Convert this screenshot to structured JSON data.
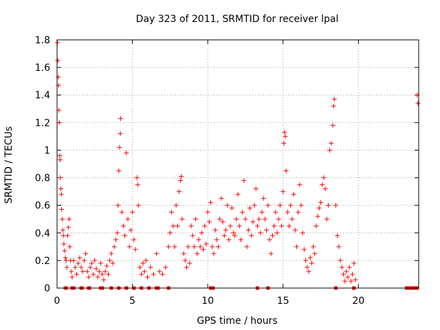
{
  "chart_data": {
    "type": "scatter",
    "title": "Day 323 of 2011, SRMTID for receiver lpal",
    "xlabel": "GPS time / hours",
    "ylabel": "SRMTID / TECUs",
    "xlim": [
      0,
      24
    ],
    "ylim": [
      0,
      1.8
    ],
    "xticks": [
      0,
      5,
      10,
      15,
      20
    ],
    "xtick_labels": [
      "0",
      "5",
      "10",
      "15",
      "20"
    ],
    "yticks": [
      0,
      0.2,
      0.4,
      0.6,
      0.8,
      1,
      1.2,
      1.4,
      1.6,
      1.8
    ],
    "ytick_labels": [
      "0",
      "0.2",
      "0.4",
      "0.6",
      "0.8",
      "1",
      "1.2",
      "1.4",
      "1.6",
      "1.8"
    ],
    "grid": true,
    "marker": "plus",
    "colors": {
      "series": "#ff0000",
      "grid": "#a0a0a0",
      "axis": "#000000"
    },
    "series": [
      {
        "name": "SRMTID",
        "points": [
          [
            0.02,
            1.78
          ],
          [
            0.05,
            1.65
          ],
          [
            0.08,
            1.53
          ],
          [
            0.1,
            1.47
          ],
          [
            0.12,
            1.29
          ],
          [
            0.15,
            1.2
          ],
          [
            0.18,
            0.96
          ],
          [
            0.2,
            0.93
          ],
          [
            0.22,
            0.8
          ],
          [
            0.25,
            0.72
          ],
          [
            0.28,
            0.68
          ],
          [
            0.3,
            0.57
          ],
          [
            0.35,
            0.5
          ],
          [
            0.38,
            0.42
          ],
          [
            0.42,
            0.38
          ],
          [
            0.45,
            0.32
          ],
          [
            0.5,
            0.27
          ],
          [
            0.55,
            0.22
          ],
          [
            0.6,
            0.2
          ],
          [
            0.65,
            0.15
          ],
          [
            0.7,
            0.38
          ],
          [
            0.75,
            0.44
          ],
          [
            0.8,
            0.5
          ],
          [
            0.85,
            0.3
          ],
          [
            0.9,
            0.2
          ],
          [
            0.95,
            0.12
          ],
          [
            1.0,
            0.08
          ],
          [
            1.1,
            0.2
          ],
          [
            1.2,
            0.15
          ],
          [
            1.3,
            0.1
          ],
          [
            1.4,
            0.18
          ],
          [
            1.5,
            0.22
          ],
          [
            1.6,
            0.15
          ],
          [
            1.7,
            0.12
          ],
          [
            1.8,
            0.2
          ],
          [
            1.9,
            0.25
          ],
          [
            2.0,
            0.12
          ],
          [
            2.1,
            0.08
          ],
          [
            2.2,
            0.15
          ],
          [
            2.3,
            0.18
          ],
          [
            2.4,
            0.1
          ],
          [
            2.5,
            0.2
          ],
          [
            2.6,
            0.14
          ],
          [
            2.7,
            0.08
          ],
          [
            2.8,
            0.12
          ],
          [
            2.9,
            0.18
          ],
          [
            3.0,
            0.1
          ],
          [
            3.1,
            0.06
          ],
          [
            3.2,
            0.12
          ],
          [
            3.3,
            0.16
          ],
          [
            3.4,
            0.1
          ],
          [
            3.5,
            0.2
          ],
          [
            3.6,
            0.25
          ],
          [
            3.7,
            0.18
          ],
          [
            3.8,
            0.3
          ],
          [
            3.9,
            0.35
          ],
          [
            4.0,
            0.4
          ],
          [
            4.05,
            0.6
          ],
          [
            4.1,
            0.85
          ],
          [
            4.15,
            1.02
          ],
          [
            4.2,
            1.12
          ],
          [
            4.22,
            1.23
          ],
          [
            4.3,
            0.55
          ],
          [
            4.4,
            0.45
          ],
          [
            4.5,
            0.38
          ],
          [
            4.6,
            0.98
          ],
          [
            4.7,
            0.5
          ],
          [
            4.8,
            0.3
          ],
          [
            4.9,
            0.42
          ],
          [
            5.0,
            0.55
          ],
          [
            5.1,
            0.35
          ],
          [
            5.2,
            0.28
          ],
          [
            5.3,
            0.8
          ],
          [
            5.35,
            0.75
          ],
          [
            5.4,
            0.6
          ],
          [
            5.5,
            0.15
          ],
          [
            5.6,
            0.1
          ],
          [
            5.7,
            0.18
          ],
          [
            5.8,
            0.12
          ],
          [
            5.9,
            0.2
          ],
          [
            6.0,
            0.08
          ],
          [
            6.2,
            0.15
          ],
          [
            6.4,
            0.1
          ],
          [
            6.6,
            0.25
          ],
          [
            6.8,
            0.12
          ],
          [
            7.0,
            0.1
          ],
          [
            7.2,
            0.15
          ],
          [
            7.4,
            0.3
          ],
          [
            7.5,
            0.4
          ],
          [
            7.6,
            0.55
          ],
          [
            7.7,
            0.45
          ],
          [
            7.8,
            0.3
          ],
          [
            7.9,
            0.6
          ],
          [
            8.0,
            0.45
          ],
          [
            8.1,
            0.7
          ],
          [
            8.2,
            0.78
          ],
          [
            8.25,
            0.81
          ],
          [
            8.3,
            0.5
          ],
          [
            8.4,
            0.25
          ],
          [
            8.5,
            0.2
          ],
          [
            8.6,
            0.15
          ],
          [
            8.7,
            0.3
          ],
          [
            8.8,
            0.18
          ],
          [
            8.9,
            0.45
          ],
          [
            9.0,
            0.38
          ],
          [
            9.1,
            0.3
          ],
          [
            9.2,
            0.5
          ],
          [
            9.3,
            0.25
          ],
          [
            9.4,
            0.35
          ],
          [
            9.5,
            0.3
          ],
          [
            9.6,
            0.4
          ],
          [
            9.7,
            0.28
          ],
          [
            9.8,
            0.45
          ],
          [
            9.9,
            0.32
          ],
          [
            10.0,
            0.55
          ],
          [
            10.1,
            0.48
          ],
          [
            10.2,
            0.62
          ],
          [
            10.3,
            0.3
          ],
          [
            10.4,
            0.25
          ],
          [
            10.5,
            0.42
          ],
          [
            10.6,
            0.35
          ],
          [
            10.7,
            0.3
          ],
          [
            10.8,
            0.5
          ],
          [
            10.9,
            0.65
          ],
          [
            11.0,
            0.48
          ],
          [
            11.1,
            0.38
          ],
          [
            11.2,
            0.42
          ],
          [
            11.3,
            0.6
          ],
          [
            11.4,
            0.35
          ],
          [
            11.5,
            0.45
          ],
          [
            11.6,
            0.58
          ],
          [
            11.7,
            0.4
          ],
          [
            11.8,
            0.38
          ],
          [
            11.9,
            0.5
          ],
          [
            12.0,
            0.68
          ],
          [
            12.1,
            0.45
          ],
          [
            12.2,
            0.35
          ],
          [
            12.3,
            0.55
          ],
          [
            12.4,
            0.78
          ],
          [
            12.5,
            0.5
          ],
          [
            12.6,
            0.3
          ],
          [
            12.7,
            0.42
          ],
          [
            12.8,
            0.58
          ],
          [
            12.9,
            0.38
          ],
          [
            13.0,
            0.48
          ],
          [
            13.1,
            0.6
          ],
          [
            13.2,
            0.72
          ],
          [
            13.3,
            0.45
          ],
          [
            13.4,
            0.5
          ],
          [
            13.5,
            0.4
          ],
          [
            13.6,
            0.55
          ],
          [
            13.7,
            0.65
          ],
          [
            13.8,
            0.5
          ],
          [
            13.9,
            0.42
          ],
          [
            14.0,
            0.6
          ],
          [
            14.1,
            0.35
          ],
          [
            14.2,
            0.25
          ],
          [
            14.3,
            0.38
          ],
          [
            14.4,
            0.45
          ],
          [
            14.5,
            0.55
          ],
          [
            14.6,
            0.4
          ],
          [
            14.7,
            0.5
          ],
          [
            14.8,
            0.6
          ],
          [
            14.9,
            0.45
          ],
          [
            15.0,
            0.7
          ],
          [
            15.05,
            1.05
          ],
          [
            15.1,
            1.13
          ],
          [
            15.15,
            1.1
          ],
          [
            15.2,
            0.85
          ],
          [
            15.3,
            0.55
          ],
          [
            15.4,
            0.45
          ],
          [
            15.5,
            0.6
          ],
          [
            15.6,
            0.5
          ],
          [
            15.7,
            0.68
          ],
          [
            15.8,
            0.42
          ],
          [
            15.9,
            0.3
          ],
          [
            16.0,
            0.55
          ],
          [
            16.1,
            0.75
          ],
          [
            16.2,
            0.6
          ],
          [
            16.3,
            0.4
          ],
          [
            16.4,
            0.28
          ],
          [
            16.5,
            0.2
          ],
          [
            16.6,
            0.15
          ],
          [
            16.7,
            0.12
          ],
          [
            16.8,
            0.22
          ],
          [
            16.9,
            0.18
          ],
          [
            17.0,
            0.3
          ],
          [
            17.1,
            0.25
          ],
          [
            17.2,
            0.45
          ],
          [
            17.3,
            0.52
          ],
          [
            17.4,
            0.58
          ],
          [
            17.5,
            0.62
          ],
          [
            17.6,
            0.75
          ],
          [
            17.7,
            0.8
          ],
          [
            17.8,
            0.72
          ],
          [
            17.9,
            0.5
          ],
          [
            18.0,
            0.6
          ],
          [
            18.1,
            1.0
          ],
          [
            18.2,
            1.05
          ],
          [
            18.3,
            1.18
          ],
          [
            18.35,
            1.32
          ],
          [
            18.4,
            1.37
          ],
          [
            18.5,
            0.6
          ],
          [
            18.6,
            0.38
          ],
          [
            18.7,
            0.3
          ],
          [
            18.8,
            0.2
          ],
          [
            18.9,
            0.15
          ],
          [
            19.0,
            0.1
          ],
          [
            19.1,
            0.05
          ],
          [
            19.2,
            0.12
          ],
          [
            19.3,
            0.08
          ],
          [
            19.4,
            0.15
          ],
          [
            19.5,
            0.05
          ],
          [
            19.6,
            0.1
          ],
          [
            19.7,
            0.18
          ],
          [
            19.8,
            0.06
          ],
          [
            23.9,
            1.4
          ],
          [
            23.95,
            1.34
          ]
        ],
        "zero_points": [
          0.55,
          0.6,
          1.0,
          1.1,
          1.6,
          1.65,
          2.1,
          2.15,
          2.9,
          3.0,
          3.6,
          4.1,
          4.6,
          5.1,
          5.6,
          6.1,
          6.6,
          6.7,
          7.4,
          10.2,
          10.25,
          10.3,
          10.35,
          13.3,
          14.0,
          18.5,
          19.7,
          23.2,
          23.3,
          23.4,
          23.5,
          23.6,
          23.7,
          23.8,
          23.9
        ]
      }
    ]
  }
}
